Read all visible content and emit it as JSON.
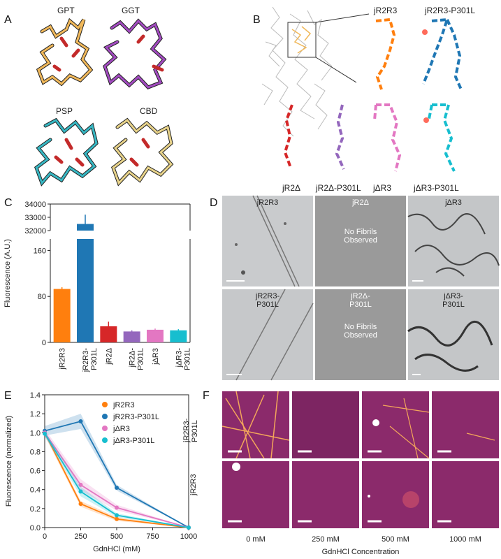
{
  "panels": {
    "A": {
      "letter": "A",
      "labels": [
        "GPT",
        "GGT",
        "PSP",
        "CBD"
      ]
    },
    "B": {
      "letter": "B",
      "labels": [
        "jR2R3",
        "jR2R3-P301L",
        "jR2Δ",
        "jR2Δ-P301L",
        "jΔR3",
        "jΔR3-P301L"
      ]
    },
    "D": {
      "letter": "D",
      "labels": [
        "jR2R3",
        "jR2Δ",
        "jΔR3",
        "jR2R3-\nP301L",
        "jR2Δ-\nP301L",
        "jΔR3-\nP301L"
      ],
      "no_fibrils": "No Fibrils\nObserved"
    },
    "F": {
      "letter": "F",
      "row_labels": [
        "jR2R3-\nP301L",
        "jR2R3"
      ],
      "col_labels": [
        "0 mM",
        "250 mM",
        "500 mM",
        "1000 mM"
      ],
      "xlabel": "GdnHCl Concentration"
    }
  },
  "colors": {
    "orange": "#ff7f0e",
    "blue": "#1f77b4",
    "red": "#d62728",
    "purple": "#9467bd",
    "pink": "#e377c2",
    "cyan": "#17becf",
    "magenta_bg": "#8b2a6b"
  },
  "chart_data": [
    {
      "panel": "C",
      "letter": "C",
      "type": "bar",
      "categories": [
        "jR2R3",
        "jR2R3-\nP301L",
        "jR2Δ",
        "jR2Δ-\nP301L",
        "jΔR3",
        "jΔR3-\nP301L"
      ],
      "values": [
        93,
        32500,
        28,
        19,
        22,
        21
      ],
      "errors": [
        3,
        700,
        8,
        2,
        2,
        2
      ],
      "colors": [
        "#ff7f0e",
        "#1f77b4",
        "#d62728",
        "#9467bd",
        "#e377c2",
        "#17becf"
      ],
      "ylabel": "Fluorescence (A.U.)",
      "yticks_lower": [
        "0",
        "80",
        "160"
      ],
      "yticks_upper": [
        "32000",
        "33000",
        "34000"
      ],
      "ylim_lower": [
        0,
        180
      ],
      "ylim_upper": [
        32000,
        34000
      ]
    },
    {
      "panel": "E",
      "letter": "E",
      "type": "line",
      "x": [
        0,
        250,
        500,
        1000
      ],
      "series": [
        {
          "name": "jR2R3",
          "color": "#ff7f0e",
          "values": [
            1.0,
            0.25,
            0.09,
            0.0
          ],
          "band": [
            0.03,
            0.03,
            0.02,
            0.0
          ]
        },
        {
          "name": "jR2R3-P301L",
          "color": "#1f77b4",
          "values": [
            1.02,
            1.12,
            0.42,
            0.0
          ],
          "band": [
            0.05,
            0.08,
            0.03,
            0.0
          ]
        },
        {
          "name": "jΔR3",
          "color": "#e377c2",
          "values": [
            1.0,
            0.45,
            0.21,
            0.0
          ],
          "band": [
            0.04,
            0.06,
            0.03,
            0.0
          ]
        },
        {
          "name": "jΔR3-P301L",
          "color": "#17becf",
          "values": [
            0.99,
            0.38,
            0.13,
            0.0
          ],
          "band": [
            0.03,
            0.05,
            0.02,
            0.0
          ]
        }
      ],
      "xlabel": "GdnHCl (mM)",
      "ylabel": "Fluorescence (normalized)",
      "xticks": [
        "0",
        "250",
        "500",
        "750",
        "1000"
      ],
      "yticks": [
        "0.0",
        "0.2",
        "0.4",
        "0.6",
        "0.8",
        "1.0",
        "1.2",
        "1.4"
      ],
      "xlim": [
        0,
        1000
      ],
      "ylim": [
        0,
        1.4
      ]
    }
  ]
}
